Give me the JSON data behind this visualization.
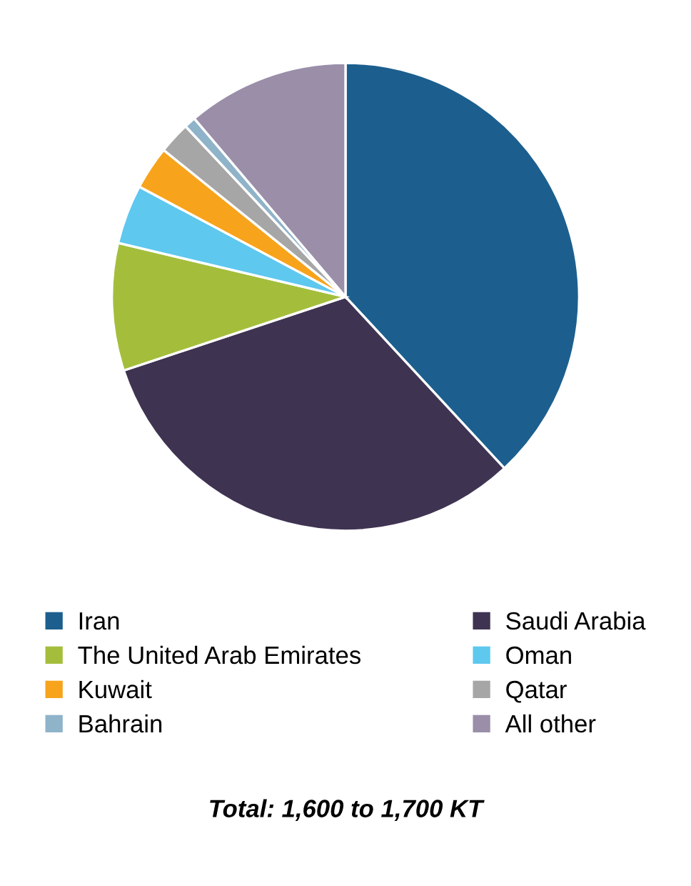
{
  "chart_data": {
    "type": "pie",
    "categories": [
      "Iran",
      "Saudi Arabia",
      "The United Arab Emirates",
      "Oman",
      "Kuwait",
      "Qatar",
      "Bahrain",
      "All other"
    ],
    "values": [
      38.1,
      31.8,
      8.8,
      4.1,
      3.0,
      2.2,
      0.8,
      11.2
    ],
    "colors": [
      "#1c5f8e",
      "#3f3352",
      "#a4be3c",
      "#5ec8ef",
      "#f8a31c",
      "#a6a6a6",
      "#8fb3c9",
      "#9a8ea9"
    ],
    "legend": "bottom",
    "annotations": [
      "Total: 1,600 to 1,700 KT"
    ]
  }
}
